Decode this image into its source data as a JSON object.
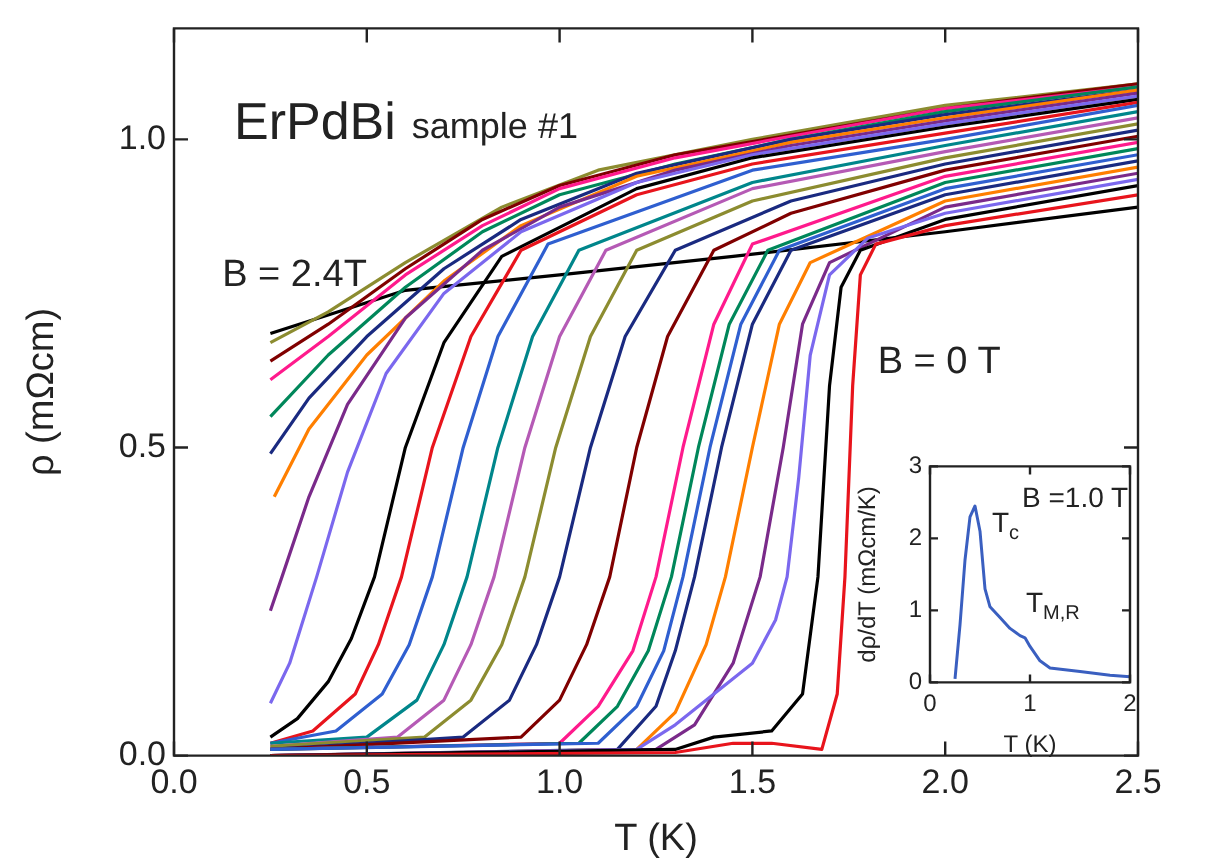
{
  "chart_data": [
    {
      "type": "line",
      "title": "ErPdBi",
      "subtitle": "sample #1",
      "xlabel": "T (K)",
      "ylabel": "ρ (mΩcm)",
      "xlim": [
        0,
        2.5
      ],
      "xticks": [
        {
          "value": 0,
          "label": "0.0"
        },
        {
          "value": 0.5,
          "label": "0.5"
        },
        {
          "value": 1,
          "label": "1.0"
        },
        {
          "value": 1.5,
          "label": "1.5"
        },
        {
          "value": 2,
          "label": "2.0"
        },
        {
          "value": 2.5,
          "label": "2.5"
        }
      ],
      "ylim": [
        0,
        1.18
      ],
      "yticks": [
        {
          "value": 0,
          "label": "0.0"
        },
        {
          "value": 0.5,
          "label": "0.5"
        },
        {
          "value": 1,
          "label": "1.0"
        }
      ],
      "grid": false,
      "legend": false,
      "marker": "none",
      "line_style": "solid",
      "annotations": [
        "B = 2.4T",
        "B = 0 T"
      ],
      "series": [
        {
          "color": "#e8141c",
          "x": [
            0.25,
            1.3,
            1.45,
            1.55,
            1.68,
            1.72,
            1.74,
            1.76,
            1.78,
            1.82,
            2.0,
            2.5
          ],
          "values": [
            0,
            0.005,
            0.02,
            0.02,
            0.01,
            0.1,
            0.29,
            0.6,
            0.78,
            0.83,
            0.86,
            0.91
          ]
        },
        {
          "color": "#000000",
          "x": [
            0.25,
            1.3,
            1.4,
            1.55,
            1.63,
            1.67,
            1.7,
            1.73,
            1.78,
            2.0,
            2.5
          ],
          "values": [
            0,
            0.01,
            0.03,
            0.04,
            0.1,
            0.29,
            0.6,
            0.76,
            0.82,
            0.87,
            0.925
          ]
        },
        {
          "color": "#7b68ee",
          "x": [
            0.25,
            1.2,
            1.3,
            1.4,
            1.5,
            1.56,
            1.59,
            1.62,
            1.65,
            1.7,
            1.8,
            2.0,
            2.5
          ],
          "values": [
            0,
            0.01,
            0.05,
            0.1,
            0.15,
            0.22,
            0.29,
            0.45,
            0.65,
            0.78,
            0.84,
            0.88,
            0.935
          ]
        },
        {
          "color": "#7a2a8a",
          "x": [
            0.25,
            1.25,
            1.35,
            1.45,
            1.52,
            1.58,
            1.63,
            1.7,
            2.0,
            2.5
          ],
          "values": [
            0,
            0.01,
            0.05,
            0.15,
            0.29,
            0.5,
            0.7,
            0.8,
            0.89,
            0.945
          ]
        },
        {
          "color": "#ff7f00",
          "x": [
            0.25,
            1.2,
            1.3,
            1.38,
            1.43,
            1.5,
            1.57,
            1.65,
            2.0,
            2.5
          ],
          "values": [
            0,
            0.01,
            0.07,
            0.18,
            0.29,
            0.5,
            0.7,
            0.8,
            0.9,
            0.955
          ]
        },
        {
          "color": "#1a2a80",
          "x": [
            0.25,
            1.15,
            1.25,
            1.3,
            1.35,
            1.42,
            1.5,
            1.6,
            2.0,
            2.5
          ],
          "values": [
            0,
            0.01,
            0.08,
            0.17,
            0.29,
            0.5,
            0.7,
            0.82,
            0.91,
            0.965
          ]
        },
        {
          "color": "#2f5fd0",
          "x": [
            0.25,
            1.1,
            1.2,
            1.27,
            1.32,
            1.39,
            1.47,
            1.57,
            2.0,
            2.5
          ],
          "values": [
            0.01,
            0.02,
            0.08,
            0.17,
            0.29,
            0.5,
            0.7,
            0.82,
            0.92,
            0.975
          ]
        },
        {
          "color": "#00875a",
          "x": [
            0.25,
            1.05,
            1.15,
            1.23,
            1.29,
            1.36,
            1.44,
            1.54,
            2.0,
            2.5
          ],
          "values": [
            0.01,
            0.02,
            0.08,
            0.17,
            0.29,
            0.5,
            0.7,
            0.82,
            0.93,
            0.985
          ]
        },
        {
          "color": "#ff1a8c",
          "x": [
            0.25,
            1.0,
            1.1,
            1.19,
            1.25,
            1.32,
            1.4,
            1.5,
            2.0,
            2.5
          ],
          "values": [
            0.01,
            0.02,
            0.08,
            0.17,
            0.29,
            0.5,
            0.7,
            0.83,
            0.94,
            0.995
          ]
        },
        {
          "color": "#800000",
          "x": [
            0.25,
            0.9,
            1.0,
            1.07,
            1.13,
            1.2,
            1.28,
            1.4,
            1.6,
            2.0,
            2.5
          ],
          "values": [
            0.01,
            0.03,
            0.09,
            0.18,
            0.29,
            0.5,
            0.68,
            0.82,
            0.88,
            0.95,
            1.005
          ]
        },
        {
          "color": "#1a2a80",
          "x": [
            0.25,
            0.75,
            0.87,
            0.94,
            1.0,
            1.08,
            1.17,
            1.3,
            1.6,
            2.0,
            2.5
          ],
          "values": [
            0.01,
            0.03,
            0.09,
            0.18,
            0.29,
            0.5,
            0.68,
            0.82,
            0.9,
            0.96,
            1.015
          ]
        },
        {
          "color": "#8c8c30",
          "x": [
            0.25,
            0.65,
            0.77,
            0.85,
            0.91,
            0.99,
            1.08,
            1.2,
            1.5,
            2.0,
            2.5
          ],
          "values": [
            0.015,
            0.03,
            0.09,
            0.18,
            0.29,
            0.5,
            0.68,
            0.82,
            0.9,
            0.97,
            1.025
          ]
        },
        {
          "color": "#b55ab5",
          "x": [
            0.25,
            0.58,
            0.7,
            0.77,
            0.83,
            0.91,
            1.0,
            1.12,
            1.5,
            2.0,
            2.5
          ],
          "values": [
            0.015,
            0.03,
            0.09,
            0.18,
            0.29,
            0.5,
            0.68,
            0.82,
            0.92,
            0.98,
            1.035
          ]
        },
        {
          "color": "#00868b",
          "x": [
            0.25,
            0.5,
            0.63,
            0.7,
            0.76,
            0.84,
            0.93,
            1.05,
            1.5,
            2.0,
            2.5
          ],
          "values": [
            0.02,
            0.03,
            0.09,
            0.18,
            0.29,
            0.5,
            0.68,
            0.82,
            0.93,
            0.99,
            1.045
          ]
        },
        {
          "color": "#2f5fd0",
          "x": [
            0.25,
            0.42,
            0.54,
            0.61,
            0.67,
            0.75,
            0.84,
            0.97,
            1.5,
            2.0,
            2.5
          ],
          "values": [
            0.02,
            0.04,
            0.1,
            0.18,
            0.29,
            0.5,
            0.68,
            0.83,
            0.95,
            1.0,
            1.055
          ]
        },
        {
          "color": "#e8141c",
          "x": [
            0.25,
            0.36,
            0.47,
            0.53,
            0.59,
            0.67,
            0.77,
            0.9,
            1.2,
            1.5,
            2.0,
            2.5
          ],
          "values": [
            0.02,
            0.04,
            0.1,
            0.18,
            0.29,
            0.5,
            0.68,
            0.82,
            0.91,
            0.96,
            1.01,
            1.06
          ]
        },
        {
          "color": "#000000",
          "x": [
            0.25,
            0.32,
            0.4,
            0.46,
            0.52,
            0.6,
            0.7,
            0.85,
            1.2,
            1.5,
            2.0,
            2.5
          ],
          "values": [
            0.03,
            0.06,
            0.12,
            0.19,
            0.29,
            0.5,
            0.67,
            0.81,
            0.92,
            0.97,
            1.02,
            1.065
          ]
        },
        {
          "color": "#7b68ee",
          "x": [
            0.25,
            0.3,
            0.37,
            0.45,
            0.55,
            0.7,
            0.9,
            1.2,
            1.5,
            2.0,
            2.5
          ],
          "values": [
            0.085,
            0.15,
            0.29,
            0.46,
            0.62,
            0.75,
            0.85,
            0.93,
            0.975,
            1.025,
            1.07
          ]
        },
        {
          "color": "#7a2a8a",
          "x": [
            0.25,
            0.28,
            0.35,
            0.45,
            0.6,
            0.8,
            1.0,
            1.3,
            1.6,
            2.0,
            2.5
          ],
          "values": [
            0.235,
            0.29,
            0.42,
            0.57,
            0.71,
            0.82,
            0.89,
            0.95,
            0.99,
            1.03,
            1.075
          ]
        },
        {
          "color": "#ff7f00",
          "x": [
            0.26,
            0.35,
            0.5,
            0.7,
            0.9,
            1.2,
            1.6,
            2.0,
            2.5
          ],
          "values": [
            0.42,
            0.53,
            0.65,
            0.77,
            0.86,
            0.94,
            0.995,
            1.035,
            1.08
          ]
        },
        {
          "color": "#1a2a80",
          "x": [
            0.25,
            0.35,
            0.5,
            0.7,
            0.9,
            1.2,
            1.6,
            2.0,
            2.5
          ],
          "values": [
            0.49,
            0.58,
            0.68,
            0.79,
            0.87,
            0.945,
            1.0,
            1.04,
            1.08
          ]
        },
        {
          "color": "#00875a",
          "x": [
            0.25,
            0.4,
            0.6,
            0.8,
            1.0,
            1.3,
            1.6,
            2.0,
            2.5
          ],
          "values": [
            0.55,
            0.65,
            0.76,
            0.85,
            0.91,
            0.96,
            1.0,
            1.045,
            1.085
          ]
        },
        {
          "color": "#ff1a8c",
          "x": [
            0.25,
            0.4,
            0.6,
            0.8,
            1.0,
            1.3,
            1.6,
            2.0,
            2.5
          ],
          "values": [
            0.61,
            0.68,
            0.78,
            0.86,
            0.92,
            0.97,
            1.005,
            1.05,
            1.085
          ]
        },
        {
          "color": "#800000",
          "x": [
            0.25,
            0.4,
            0.6,
            0.8,
            1.0,
            1.3,
            2.0,
            2.5
          ],
          "values": [
            0.64,
            0.7,
            0.79,
            0.87,
            0.925,
            0.975,
            1.05,
            1.09
          ]
        },
        {
          "color": "#8c8c30",
          "x": [
            0.25,
            0.4,
            0.6,
            0.85,
            1.1,
            1.5,
            2.0,
            2.5
          ],
          "values": [
            0.67,
            0.72,
            0.8,
            0.89,
            0.95,
            1.0,
            1.055,
            1.09
          ]
        },
        {
          "color": "#000000",
          "x": [
            0.25,
            0.6,
            1.0,
            1.45,
            2.0,
            2.5
          ],
          "values": [
            0.685,
            0.755,
            0.78,
            0.81,
            0.85,
            0.89
          ]
        }
      ]
    },
    {
      "type": "line",
      "xlabel": "T (K)",
      "ylabel": "dρ/dT (mΩcm/K)",
      "xlim": [
        0,
        2
      ],
      "xticks": [
        0,
        1,
        2
      ],
      "ylim": [
        0,
        3
      ],
      "yticks": [
        0,
        1,
        2,
        3
      ],
      "grid": false,
      "legend": false,
      "marker": "none",
      "line_style": "solid",
      "annotations": [
        "B =1.0 T",
        "T$_{c}$",
        "T$_{M,R}$"
      ],
      "series": [
        {
          "color": "#3a5fc0",
          "x": [
            0.25,
            0.3,
            0.35,
            0.4,
            0.45,
            0.5,
            0.55,
            0.6,
            0.7,
            0.8,
            0.9,
            0.95,
            1.0,
            1.1,
            1.2,
            1.5,
            1.8,
            2.0
          ],
          "values": [
            0.05,
            0.8,
            1.7,
            2.3,
            2.45,
            2.1,
            1.3,
            1.05,
            0.9,
            0.75,
            0.65,
            0.62,
            0.5,
            0.3,
            0.2,
            0.15,
            0.1,
            0.08
          ]
        }
      ]
    }
  ]
}
